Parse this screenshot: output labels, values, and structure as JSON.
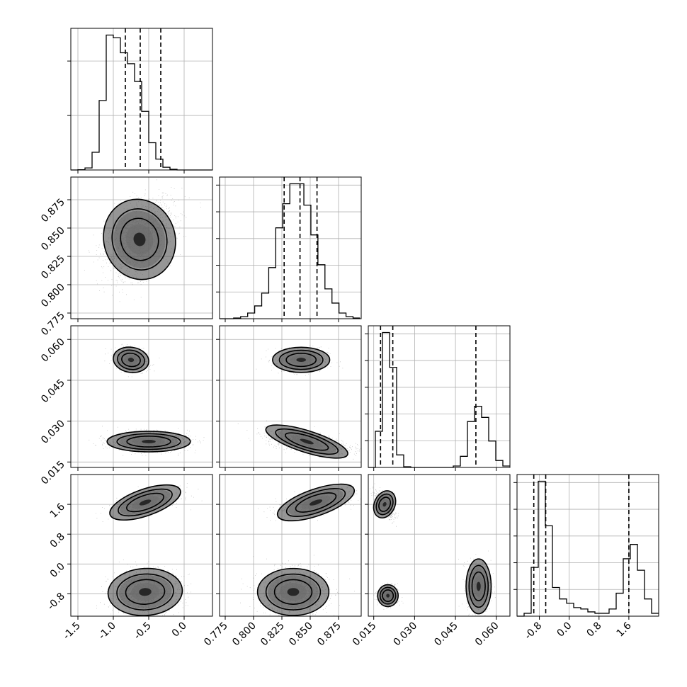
{
  "chart_data": {
    "type": "corner",
    "title": "",
    "parameters": [
      {
        "index": 0,
        "range": [
          -1.6,
          0.4
        ],
        "ticks": [
          "-1.5",
          "-1.0",
          "-0.5",
          "0.0"
        ],
        "tick_values": [
          -1.5,
          -1.0,
          -0.5,
          0.0
        ],
        "quantiles": [
          -0.83,
          -0.62,
          -0.33
        ],
        "histogram": {
          "bin_start": -1.6,
          "bin_width": 0.1,
          "counts": [
            0,
            0.2,
            1.5,
            13,
            51,
            99,
            97,
            86,
            78,
            65,
            43,
            20,
            8,
            2,
            0.5,
            0,
            0,
            0,
            0,
            0
          ]
        }
      },
      {
        "index": 1,
        "range": [
          0.77,
          0.895
        ],
        "ticks": [
          "0.775",
          "0.800",
          "0.825",
          "0.850",
          "0.875"
        ],
        "tick_values": [
          0.775,
          0.8,
          0.825,
          0.85,
          0.875
        ],
        "quantiles": [
          0.827,
          0.841,
          0.856
        ],
        "histogram": {
          "bin_start": 0.77,
          "bin_width": 0.0062,
          "counts": [
            0,
            0,
            0.5,
            1.5,
            4,
            9,
            18,
            36,
            64,
            81,
            95,
            95,
            80,
            59,
            38,
            21,
            11,
            4,
            1.5,
            0.5
          ]
        }
      },
      {
        "index": 2,
        "range": [
          0.013,
          0.065
        ],
        "ticks": [
          "0.015",
          "0.030",
          "0.045",
          "0.060"
        ],
        "tick_values": [
          0.015,
          0.03,
          0.045,
          0.06
        ],
        "quantiles": [
          0.0175,
          0.022,
          0.0525
        ],
        "histogram": {
          "bin_start": 0.013,
          "bin_width": 0.0026,
          "counts": [
            0,
            26,
            97,
            72,
            9,
            0.5,
            0,
            0,
            0,
            0,
            0,
            0,
            1,
            8,
            33,
            44,
            36,
            19,
            5,
            1
          ]
        }
      },
      {
        "index": 3,
        "range": [
          -1.4,
          2.4
        ],
        "ticks": [
          "-0.8",
          "0.0",
          "0.8",
          "1.6"
        ],
        "tick_values": [
          -0.8,
          0.0,
          0.8,
          1.6
        ],
        "quantiles": [
          -0.95,
          -0.63,
          1.6
        ],
        "histogram": {
          "bin_start": -1.4,
          "bin_width": 0.19,
          "counts": [
            0,
            2,
            34,
            94,
            63,
            20,
            12,
            9,
            6,
            5,
            3,
            2,
            2,
            5,
            16,
            40,
            50,
            32,
            12,
            2
          ]
        }
      }
    ],
    "scatter_panels": [
      {
        "row": 1,
        "col": 0,
        "clusters": [
          {
            "mx": -0.63,
            "my": 0.84,
            "sx": 0.24,
            "sy": 0.017,
            "rho": 0.45,
            "n": 1500
          }
        ]
      },
      {
        "row": 2,
        "col": 0,
        "clusters": [
          {
            "mx": -0.75,
            "my": 0.0525,
            "sx": 0.12,
            "sy": 0.0022,
            "rho": -0.25,
            "n": 500
          },
          {
            "mx": -0.5,
            "my": 0.0225,
            "sx": 0.28,
            "sy": 0.0018,
            "rho": 0.0,
            "n": 1000
          }
        ]
      },
      {
        "row": 2,
        "col": 1,
        "clusters": [
          {
            "mx": 0.842,
            "my": 0.0525,
            "sx": 0.012,
            "sy": 0.0022,
            "rho": 0.0,
            "n": 500
          },
          {
            "mx": 0.847,
            "my": 0.0225,
            "sx": 0.018,
            "sy": 0.0019,
            "rho": -0.5,
            "n": 1000
          }
        ]
      },
      {
        "row": 3,
        "col": 0,
        "clusters": [
          {
            "mx": -0.55,
            "my": 1.65,
            "sx": 0.25,
            "sy": 0.17,
            "rho": 0.55,
            "n": 500
          },
          {
            "mx": -0.55,
            "my": -0.75,
            "sx": 0.25,
            "sy": 0.3,
            "rho": 0.1,
            "n": 1000
          }
        ]
      },
      {
        "row": 3,
        "col": 1,
        "clusters": [
          {
            "mx": 0.855,
            "my": 1.65,
            "sx": 0.017,
            "sy": 0.17,
            "rho": 0.55,
            "n": 500
          },
          {
            "mx": 0.835,
            "my": -0.75,
            "sx": 0.015,
            "sy": 0.3,
            "rho": 0.0,
            "n": 1000
          }
        ]
      },
      {
        "row": 3,
        "col": 2,
        "clusters": [
          {
            "mx": 0.019,
            "my": 1.6,
            "sx": 0.0018,
            "sy": 0.18,
            "rho": -0.7,
            "n": 500
          },
          {
            "mx": 0.0202,
            "my": -0.85,
            "sx": 0.0018,
            "sy": 0.14,
            "rho": 0.0,
            "n": 500
          },
          {
            "mx": 0.0535,
            "my": -0.6,
            "sx": 0.0022,
            "sy": 0.35,
            "rho": 0.0,
            "n": 500
          }
        ]
      }
    ],
    "grid": true,
    "legend": "none"
  }
}
